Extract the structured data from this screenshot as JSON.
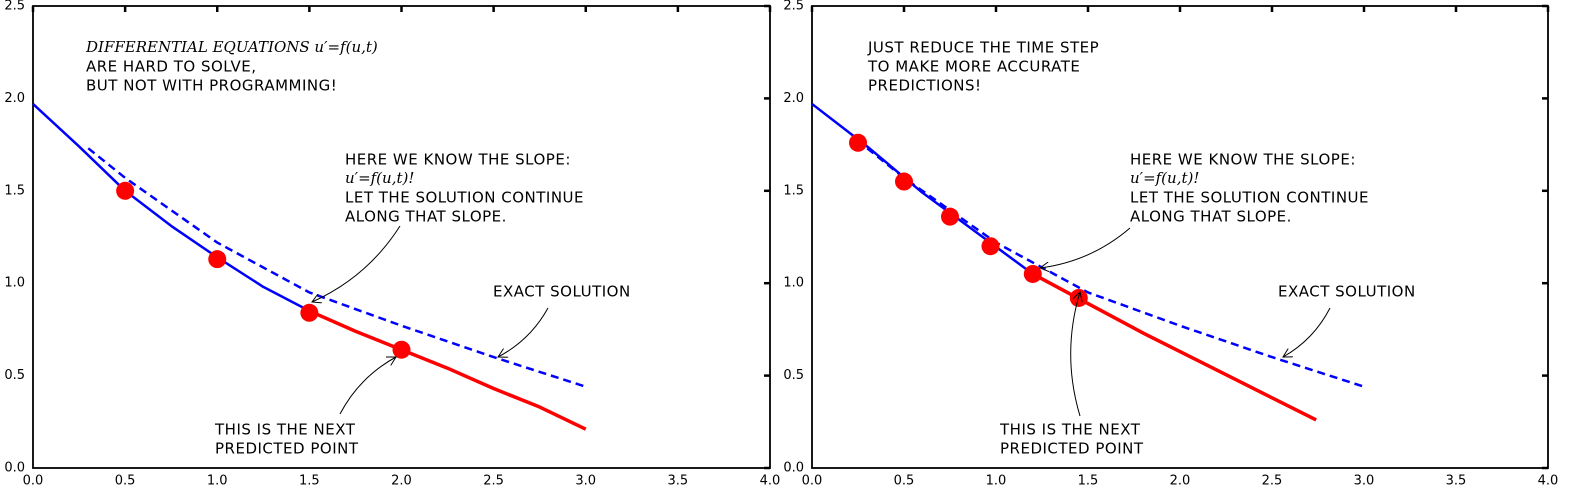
{
  "chart_data": [
    {
      "type": "line",
      "xlim": [
        0,
        4
      ],
      "ylim": [
        0,
        2.5
      ],
      "xticks": [
        {
          "value": 0,
          "label": "0.0"
        },
        0.5,
        {
          "value": 1,
          "label": "1.0"
        },
        1.5,
        {
          "value": 2,
          "label": "2.0"
        },
        2.5,
        {
          "value": 3,
          "label": "3.0"
        },
        3.5,
        {
          "value": 4,
          "label": "4.0"
        }
      ],
      "yticks": [
        {
          "value": 0,
          "label": "0.0"
        },
        0.5,
        {
          "value": 1,
          "label": "1.0"
        },
        1.5,
        {
          "value": 2,
          "label": "2.0"
        },
        2.5
      ],
      "series": [
        {
          "color": "#0000ff",
          "linestyle": "solid",
          "x": [
            0,
            0.25,
            0.5,
            0.75,
            1.0,
            1.25,
            1.5
          ],
          "values": [
            1.97,
            1.74,
            1.5,
            1.31,
            1.14,
            0.98,
            0.85
          ]
        },
        {
          "color": "#ff0000",
          "linestyle": "solid",
          "x": [
            1.5,
            1.75,
            2.0,
            2.25,
            2.5,
            2.75,
            3.0
          ],
          "values": [
            0.85,
            0.74,
            0.64,
            0.54,
            0.43,
            0.33,
            0.21
          ]
        },
        {
          "color": "#0000ff",
          "linestyle": "dashed",
          "x": [
            0.3,
            0.5,
            1.0,
            1.5,
            2.0,
            2.5,
            3.0
          ],
          "values": [
            1.73,
            1.57,
            1.22,
            0.95,
            0.77,
            0.6,
            0.44
          ]
        },
        {
          "color": "#ff0000",
          "linestyle": "none",
          "marker": true,
          "x": [
            0.5,
            1.0,
            1.5,
            2.0
          ],
          "values": [
            1.5,
            1.13,
            0.84,
            0.64
          ]
        }
      ],
      "annotations": [
        {
          "lines": [
            "DIFFERENTIAL EQUATIONS u′=f(u,t)",
            "ARE HARD TO SOLVE,",
            "BUT NOT WITH PROGRAMMING!"
          ]
        },
        {
          "lines": [
            "HERE WE KNOW THE SLOPE:",
            "u′=f(u,t)!",
            "LET THE SOLUTION CONTINUE",
            "ALONG THAT SLOPE."
          ]
        },
        {
          "lines": [
            "EXACT SOLUTION"
          ]
        },
        {
          "lines": [
            "THIS IS THE NEXT",
            "PREDICTED POINT"
          ]
        }
      ]
    },
    {
      "type": "line",
      "xlim": [
        0,
        4
      ],
      "ylim": [
        0,
        2.5
      ],
      "xticks": [
        {
          "value": 0,
          "label": "0.0"
        },
        0.5,
        {
          "value": 1,
          "label": "1.0"
        },
        1.5,
        {
          "value": 2,
          "label": "2.0"
        },
        2.5,
        {
          "value": 3,
          "label": "3.0"
        },
        3.5,
        {
          "value": 4,
          "label": "4.0"
        }
      ],
      "yticks": [
        {
          "value": 0,
          "label": "0.0"
        },
        0.5,
        {
          "value": 1,
          "label": "1.0"
        },
        1.5,
        {
          "value": 2,
          "label": "2.0"
        },
        2.5
      ],
      "series": [
        {
          "color": "#0000ff",
          "linestyle": "solid",
          "x": [
            0,
            0.3,
            0.6,
            0.9,
            1.2
          ],
          "values": [
            1.97,
            1.74,
            1.49,
            1.27,
            1.05
          ]
        },
        {
          "color": "#ff0000",
          "linestyle": "solid",
          "x": [
            1.2,
            1.5,
            1.8,
            2.1,
            2.4,
            2.74
          ],
          "values": [
            1.05,
            0.89,
            0.73,
            0.58,
            0.43,
            0.26
          ]
        },
        {
          "color": "#0000ff",
          "linestyle": "dashed",
          "x": [
            0.3,
            0.5,
            1.0,
            1.5,
            2.0,
            2.5,
            3.0
          ],
          "values": [
            1.73,
            1.57,
            1.22,
            0.95,
            0.77,
            0.6,
            0.44
          ]
        },
        {
          "color": "#ff0000",
          "linestyle": "none",
          "marker": true,
          "x": [
            0.25,
            0.5,
            0.75,
            0.97,
            1.2,
            1.45
          ],
          "values": [
            1.76,
            1.55,
            1.36,
            1.2,
            1.05,
            0.92
          ]
        }
      ],
      "annotations": [
        {
          "lines": [
            "JUST REDUCE THE TIME STEP",
            "TO MAKE MORE ACCURATE",
            "PREDICTIONS!"
          ]
        },
        {
          "lines": [
            "HERE WE KNOW THE SLOPE:",
            "u′=f(u,t)!",
            "LET THE SOLUTION CONTINUE",
            "ALONG THAT SLOPE."
          ]
        },
        {
          "lines": [
            "EXACT SOLUTION"
          ]
        },
        {
          "lines": [
            "THIS IS THE NEXT",
            "PREDICTED POINT"
          ]
        }
      ]
    }
  ]
}
